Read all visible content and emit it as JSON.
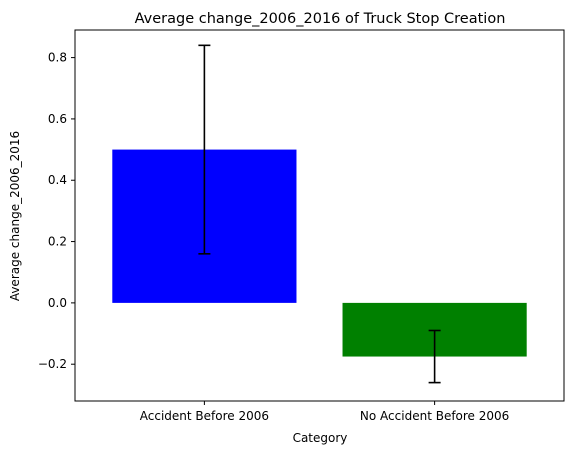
{
  "chart_data": {
    "type": "bar",
    "title": "Average change_2006_2016 of Truck Stop Creation",
    "xlabel": "Category",
    "ylabel": "Average change_2006_2016",
    "categories": [
      "Accident Before 2006",
      "No Accident Before 2006"
    ],
    "values": [
      0.5,
      -0.175
    ],
    "error_bars": [
      {
        "low": 0.16,
        "high": 0.84
      },
      {
        "low": -0.26,
        "high": -0.09
      }
    ],
    "bar_colors": [
      "#0000ff",
      "#008000"
    ],
    "error_bar_color": "#000000",
    "ylim": [
      -0.32,
      0.89
    ],
    "yticks": [
      -0.2,
      0.0,
      0.2,
      0.4,
      0.6,
      0.8
    ],
    "ytick_labels": [
      "−0.2",
      "0.0",
      "0.2",
      "0.4",
      "0.6",
      "0.8"
    ],
    "grid": false
  }
}
